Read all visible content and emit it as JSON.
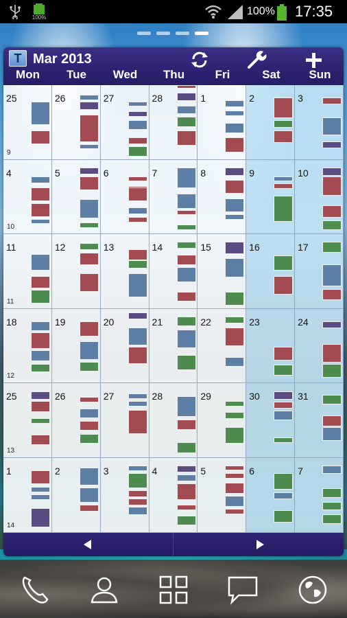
{
  "status_bar": {
    "battery_small_label": "100%",
    "battery_percent": "100%",
    "time": "17:35",
    "icons": [
      "usb-icon",
      "battery-charging-icon",
      "wifi-icon",
      "signal-icon",
      "battery-icon"
    ]
  },
  "home_pages": {
    "count": 4,
    "active_index": 3
  },
  "calendar": {
    "month_title": "Mar 2013",
    "app_icon_letter": "T",
    "header_icons": [
      "sync-icon",
      "settings-wrench-icon",
      "add-icon"
    ],
    "day_headers": [
      "Mon",
      "Tue",
      "Wed",
      "Thu",
      "Fri",
      "Sat",
      "Sun"
    ],
    "weeks": [
      {
        "number": "9",
        "days": [
          "25",
          "26",
          "27",
          "28",
          "1",
          "2",
          "3"
        ]
      },
      {
        "number": "10",
        "days": [
          "4",
          "5",
          "6",
          "7",
          "8",
          "9",
          "10"
        ]
      },
      {
        "number": "11",
        "days": [
          "11",
          "12",
          "13",
          "14",
          "15",
          "16",
          "17"
        ]
      },
      {
        "number": "12",
        "days": [
          "18",
          "19",
          "20",
          "21",
          "22",
          "23",
          "24"
        ]
      },
      {
        "number": "13",
        "days": [
          "25",
          "26",
          "27",
          "28",
          "29",
          "30",
          "31"
        ]
      },
      {
        "number": "14",
        "days": [
          "1",
          "2",
          "3",
          "4",
          "5",
          "6",
          "7"
        ]
      }
    ],
    "event_colors": {
      "b": "#5d7fa6",
      "r": "#a24b50",
      "g": "#4d8b4e",
      "p": "#5a4c83"
    },
    "nav": {
      "prev_icon": "arrow-left-icon",
      "next_icon": "arrow-right-icon"
    }
  },
  "dock": [
    "phone-icon",
    "contacts-icon",
    "apps-grid-icon",
    "messaging-icon",
    "browser-globe-icon"
  ]
}
